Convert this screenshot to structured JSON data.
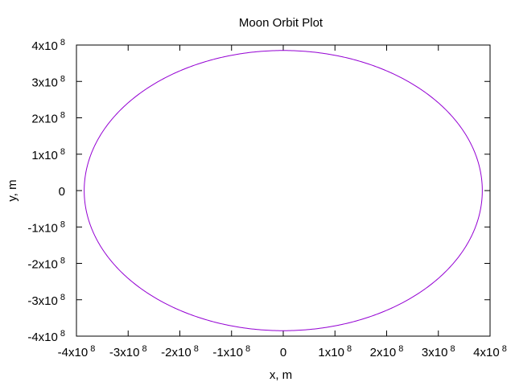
{
  "chart_data": {
    "type": "line",
    "title": "Moon Orbit Plot",
    "xlabel": "x, m",
    "ylabel": "y, m",
    "xlim": [
      -400000000,
      400000000
    ],
    "ylim": [
      -400000000,
      400000000
    ],
    "x_ticks": [
      {
        "value": -400000000,
        "mantissa": "-4x10",
        "exp": "8"
      },
      {
        "value": -300000000,
        "mantissa": "-3x10",
        "exp": "8"
      },
      {
        "value": -200000000,
        "mantissa": "-2x10",
        "exp": "8"
      },
      {
        "value": -100000000,
        "mantissa": "-1x10",
        "exp": "8"
      },
      {
        "value": 0,
        "mantissa": "0",
        "exp": ""
      },
      {
        "value": 100000000,
        "mantissa": "1x10",
        "exp": "8"
      },
      {
        "value": 200000000,
        "mantissa": "2x10",
        "exp": "8"
      },
      {
        "value": 300000000,
        "mantissa": "3x10",
        "exp": "8"
      },
      {
        "value": 400000000,
        "mantissa": "4x10",
        "exp": "8"
      }
    ],
    "y_ticks": [
      {
        "value": 400000000,
        "mantissa": "4x10",
        "exp": "8"
      },
      {
        "value": 300000000,
        "mantissa": "3x10",
        "exp": "8"
      },
      {
        "value": 200000000,
        "mantissa": "2x10",
        "exp": "8"
      },
      {
        "value": 100000000,
        "mantissa": "1x10",
        "exp": "8"
      },
      {
        "value": 0,
        "mantissa": "0",
        "exp": ""
      },
      {
        "value": -100000000,
        "mantissa": "-1x10",
        "exp": "8"
      },
      {
        "value": -200000000,
        "mantissa": "-2x10",
        "exp": "8"
      },
      {
        "value": -300000000,
        "mantissa": "-3x10",
        "exp": "8"
      },
      {
        "value": -400000000,
        "mantissa": "-4x10",
        "exp": "8"
      }
    ],
    "grid": false,
    "legend": "none",
    "series": [
      {
        "shape": "circle",
        "center": [
          0,
          0
        ],
        "radius": 385000000,
        "color": "#9400d3"
      }
    ]
  }
}
